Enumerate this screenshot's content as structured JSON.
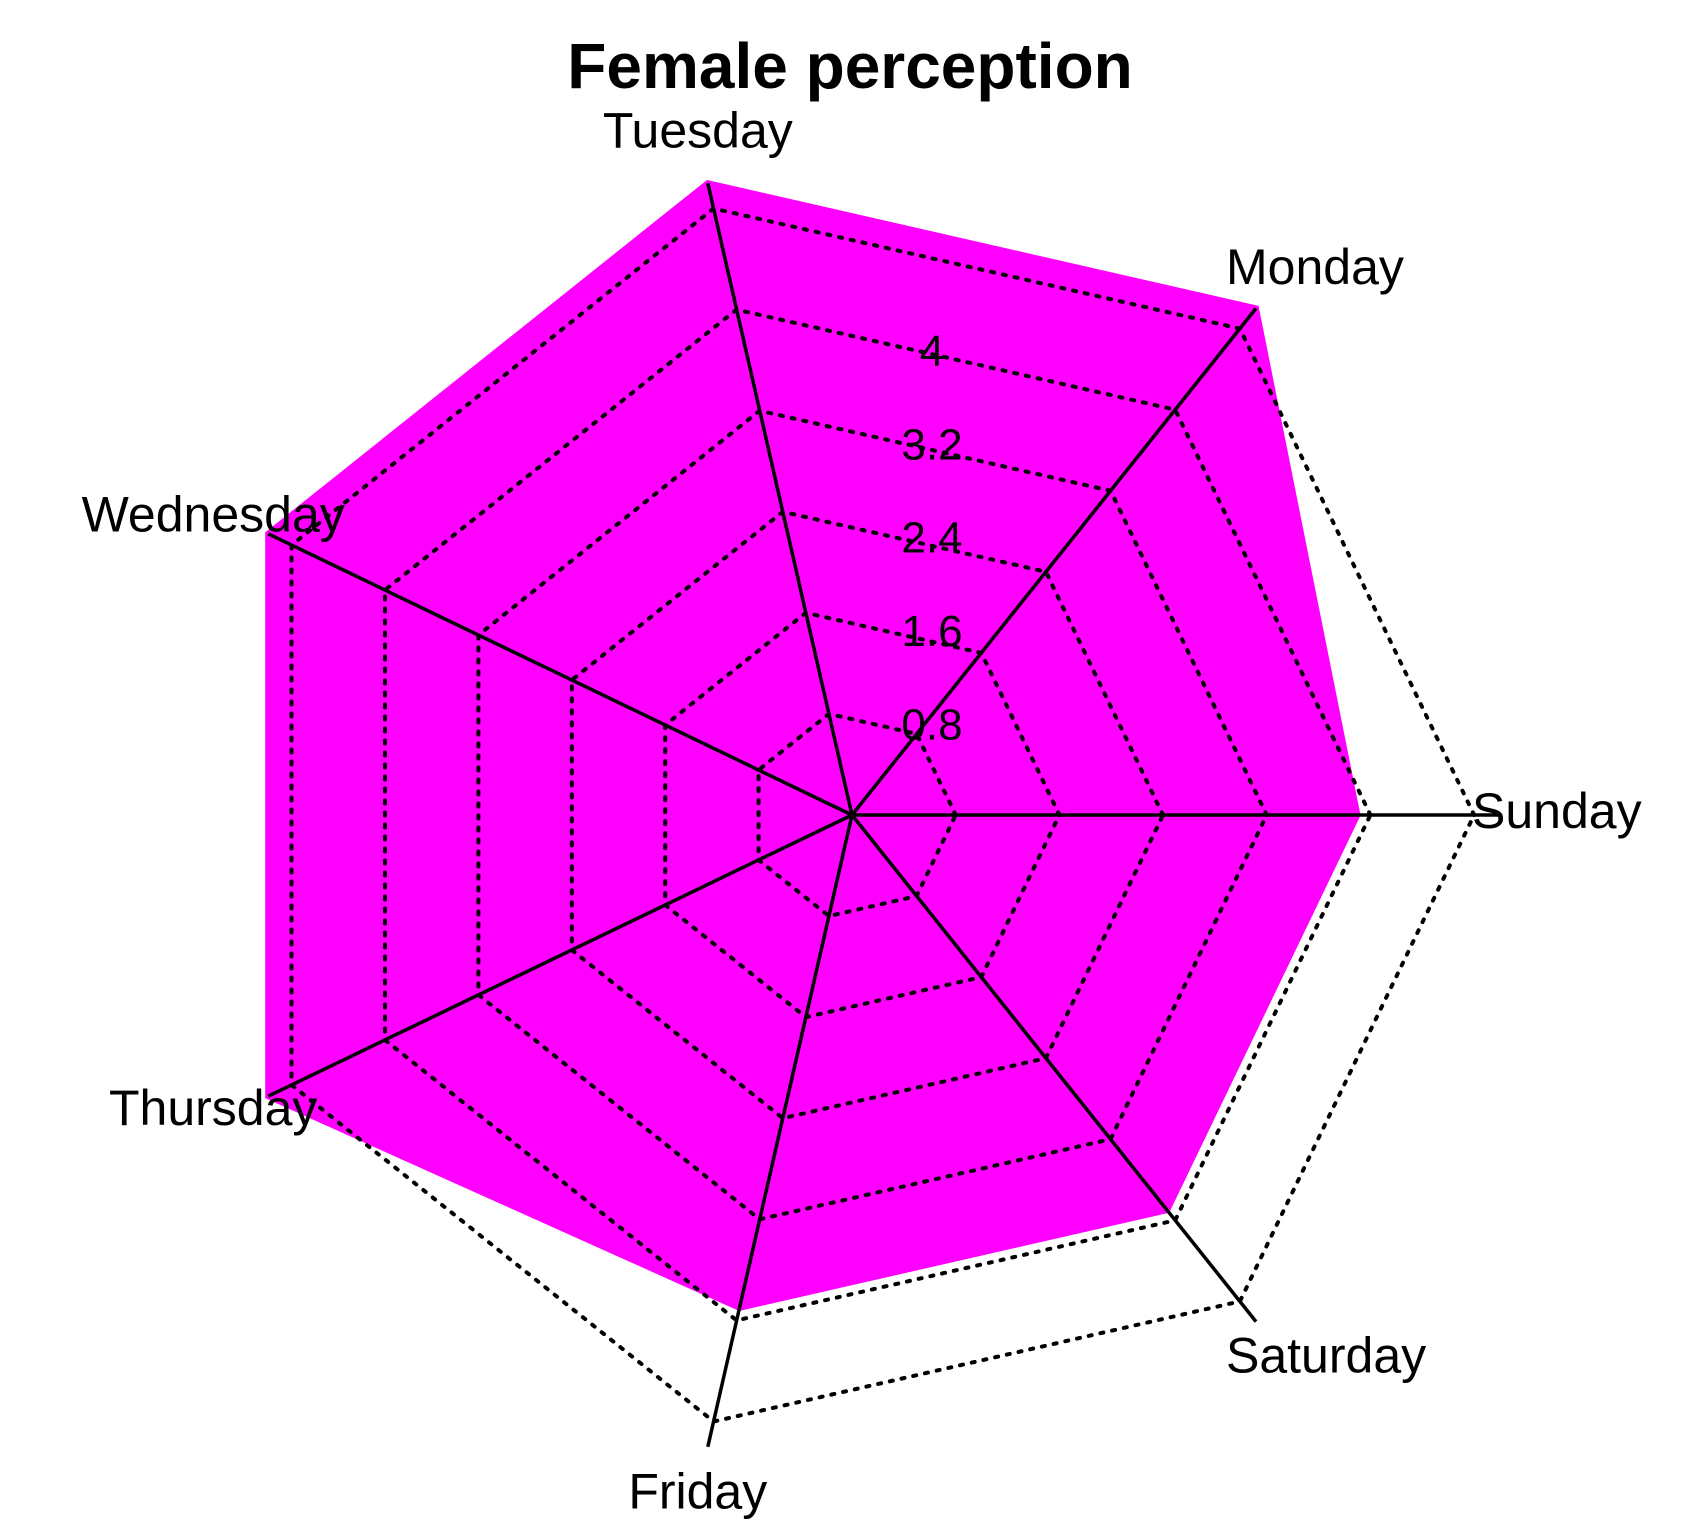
{
  "chart_data": {
    "type": "radar",
    "title": "Female perception",
    "categories": [
      "Sunday",
      "Monday",
      "Tuesday",
      "Wednesday",
      "Thursday",
      "Friday",
      "Saturday"
    ],
    "series": [
      {
        "values": [
          3.9,
          5.0,
          5.0,
          5.0,
          5.0,
          3.9,
          3.9
        ]
      }
    ],
    "rmax": 5.0,
    "grid_levels": [
      0.8,
      1.6,
      2.4,
      3.2,
      4.0,
      4.8
    ],
    "tick_labels": [
      "0.8",
      "1.6",
      "2.4",
      "3.2",
      "4"
    ],
    "fill_color": "#ff00ff",
    "grid": true
  }
}
